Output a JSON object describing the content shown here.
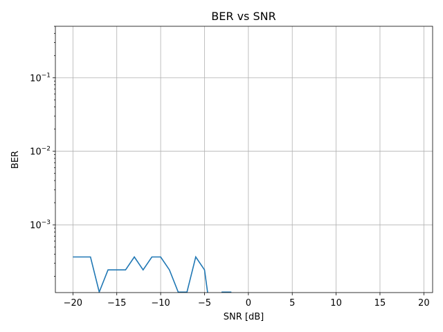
{
  "chart_data": {
    "type": "line",
    "title": "BER vs SNR",
    "xlabel": "SNR [dB]",
    "ylabel": "BER",
    "xlim": [
      -22,
      21
    ],
    "ylim": [
      0.00012,
      0.5
    ],
    "yscale": "log",
    "grid": true,
    "x_ticks": [
      -20,
      -15,
      -10,
      -5,
      0,
      5,
      10,
      15,
      20
    ],
    "x_tick_labels": [
      "−20",
      "−15",
      "−10",
      "−5",
      "0",
      "5",
      "10",
      "15",
      "20"
    ],
    "y_ticks": [
      0.001,
      0.01,
      0.1
    ],
    "y_tick_labels": [
      {
        "base": "10",
        "exp": "−3"
      },
      {
        "base": "10",
        "exp": "−2"
      },
      {
        "base": "10",
        "exp": "−1"
      }
    ],
    "series": [
      {
        "color": "#1f77b4",
        "x": [
          -20,
          -19,
          -18,
          -17,
          -16,
          -15,
          -14,
          -13,
          -12,
          -11,
          -10,
          -9,
          -8,
          -7,
          -6,
          -5,
          -4,
          -3,
          -2,
          -1,
          0,
          1,
          2,
          3,
          4,
          5,
          6,
          7,
          8,
          9,
          10,
          11,
          12,
          13,
          14,
          15,
          16,
          17,
          18,
          19,
          20
        ],
        "y": [
          0.000366,
          0.000366,
          0.000366,
          0.000122,
          0.000244,
          0.000244,
          0.000244,
          0.000366,
          0.000244,
          0.000366,
          0.000366,
          0.000244,
          0.000122,
          0.000122,
          0.000366,
          0.000244,
          0,
          0.000122,
          0.000122,
          0,
          0,
          0,
          0,
          0,
          0,
          0,
          0,
          0,
          0,
          0,
          0,
          0,
          0,
          0,
          0,
          0,
          0,
          0,
          0,
          0,
          0
        ]
      }
    ]
  }
}
